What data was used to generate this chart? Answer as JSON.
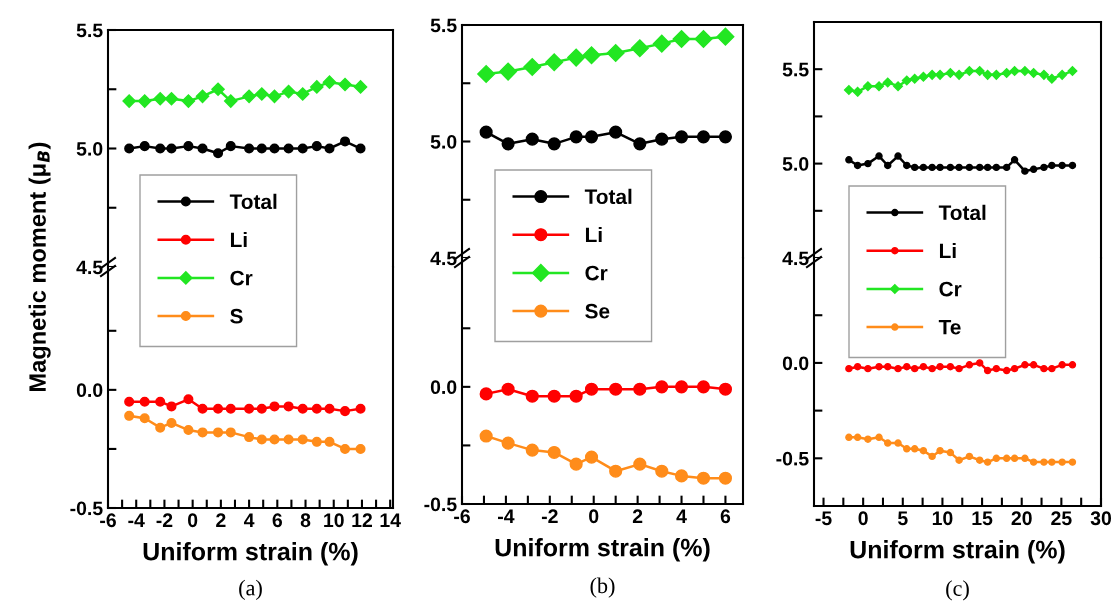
{
  "chart_data": [
    {
      "type": "line",
      "x": [
        -4.5,
        -3.4,
        -2.3,
        -1.5,
        -0.3,
        0.7,
        1.8,
        2.7,
        4.0,
        4.9,
        5.8,
        6.8,
        7.8,
        8.8,
        9.7,
        10.8,
        11.9
      ],
      "xlim": [
        -6,
        14.2
      ],
      "ylim": [
        4.5,
        5.5
      ],
      "yticks": [
        4.5,
        {
          "value": 4.75,
          "label": null
        },
        {
          "value": 5.0,
          "label": "5.0"
        },
        {
          "value": 5.25,
          "label": null
        },
        5.5
      ],
      "tick_labels": "y",
      "legend": "bottom left",
      "series": [
        {
          "name": "Total",
          "color": "#000000",
          "marker": "circle",
          "values": [
            5.0,
            5.01,
            5.0,
            5.0,
            5.01,
            5.0,
            4.98,
            5.01,
            5.0,
            5.0,
            5.0,
            5.0,
            5.0,
            5.01,
            5.0,
            5.03,
            5.0
          ]
        },
        {
          "name": "Cr",
          "color": "#22e622",
          "marker": "diamond",
          "values": [
            5.2,
            5.2,
            5.21,
            5.21,
            5.2,
            5.22,
            5.25,
            5.2,
            5.22,
            5.23,
            5.22,
            5.24,
            5.23,
            5.26,
            5.28,
            5.27,
            5.26
          ]
        }
      ]
    },
    {
      "type": "line",
      "x": [
        -4.5,
        -3.4,
        -2.3,
        -1.5,
        -0.3,
        0.7,
        1.8,
        2.7,
        4.0,
        4.9,
        5.8,
        6.8,
        7.8,
        8.8,
        9.7,
        10.8,
        11.9
      ],
      "xlim": [
        -6,
        14.2
      ],
      "ylim": [
        -0.5,
        0.52
      ],
      "yticks": [
        -0.5,
        {
          "value": -0.25,
          "label": null
        },
        {
          "value": 0,
          "label": "0.0"
        },
        {
          "value": 0.25,
          "label": null
        }
      ],
      "xticks": [
        -6,
        {
          "value": -5,
          "label": null
        },
        -4,
        {
          "value": -3,
          "label": null
        },
        -2,
        {
          "value": -1,
          "label": null
        },
        0,
        {
          "value": 1,
          "label": null
        },
        2,
        {
          "value": 3,
          "label": null
        },
        4,
        {
          "value": 5,
          "label": null
        },
        6,
        {
          "value": 7,
          "label": null
        },
        8,
        {
          "value": 9,
          "label": null
        },
        10,
        {
          "value": 11,
          "label": null
        },
        12,
        {
          "value": 13,
          "label": null
        },
        14
      ],
      "xlabel": "Uniform strain (%)",
      "ylabel": "Magnetic moment (μ$_{B}$)",
      "legend": "top left",
      "annotations": [
        "(a)"
      ],
      "series": [
        {
          "name": "Li",
          "color": "#ff0000",
          "marker": "circle",
          "values": [
            -0.05,
            -0.05,
            -0.05,
            -0.07,
            -0.04,
            -0.08,
            -0.08,
            -0.08,
            -0.08,
            -0.08,
            -0.07,
            -0.07,
            -0.08,
            -0.08,
            -0.08,
            -0.09,
            -0.08
          ]
        },
        {
          "name": "S",
          "color": "#ff8c1a",
          "marker": "circle",
          "values": [
            -0.11,
            -0.12,
            -0.16,
            -0.14,
            -0.17,
            -0.18,
            -0.18,
            -0.18,
            -0.2,
            -0.21,
            -0.21,
            -0.21,
            -0.21,
            -0.22,
            -0.22,
            -0.25,
            -0.25
          ]
        }
      ]
    },
    {
      "type": "line",
      "x": [
        -4.9,
        -3.9,
        -2.8,
        -1.8,
        -0.8,
        -0.1,
        1.0,
        2.1,
        3.1,
        4.0,
        5.0,
        6.0
      ],
      "xlim": [
        -6,
        6.8
      ],
      "ylim": [
        4.5,
        5.5
      ],
      "yticks": [
        4.5,
        {
          "value": 4.75,
          "label": null
        },
        {
          "value": 5.0,
          "label": "5.0"
        },
        {
          "value": 5.25,
          "label": null
        },
        5.5
      ],
      "tick_labels": "y",
      "legend": "bottom left",
      "series": [
        {
          "name": "Total",
          "color": "#000000",
          "marker": "circle",
          "values": [
            5.04,
            4.99,
            5.01,
            4.99,
            5.02,
            5.02,
            5.04,
            4.99,
            5.01,
            5.02,
            5.02,
            5.02
          ]
        },
        {
          "name": "Cr",
          "color": "#22e622",
          "marker": "diamond",
          "values": [
            5.29,
            5.3,
            5.32,
            5.34,
            5.36,
            5.37,
            5.38,
            5.4,
            5.42,
            5.44,
            5.44,
            5.45
          ]
        }
      ]
    },
    {
      "type": "line",
      "x": [
        -4.9,
        -3.9,
        -2.8,
        -1.8,
        -0.8,
        -0.1,
        1.0,
        2.1,
        3.1,
        4.0,
        5.0,
        6.0
      ],
      "xlim": [
        -6,
        6.8
      ],
      "ylim": [
        -0.5,
        0.55
      ],
      "yticks": [
        -0.5,
        {
          "value": -0.25,
          "label": null
        },
        {
          "value": 0,
          "label": "0.0"
        },
        {
          "value": 0.25,
          "label": null
        }
      ],
      "xticks": [
        -6,
        {
          "value": -5,
          "label": null
        },
        -4,
        {
          "value": -3,
          "label": null
        },
        -2,
        {
          "value": -1,
          "label": null
        },
        0,
        {
          "value": 1,
          "label": null
        },
        2,
        {
          "value": 3,
          "label": null
        },
        4,
        {
          "value": 5,
          "label": null
        },
        6
      ],
      "xlabel": "Uniform strain (%)",
      "legend": "top left",
      "annotations": [
        "(b)"
      ],
      "series": [
        {
          "name": "Li",
          "color": "#ff0000",
          "marker": "circle",
          "values": [
            -0.03,
            -0.01,
            -0.04,
            -0.04,
            -0.04,
            -0.01,
            -0.01,
            -0.01,
            0.0,
            0.0,
            0.0,
            -0.01
          ]
        },
        {
          "name": "Se",
          "color": "#ff8c1a",
          "marker": "circle",
          "values": [
            -0.21,
            -0.24,
            -0.27,
            -0.28,
            -0.33,
            -0.3,
            -0.36,
            -0.33,
            -0.36,
            -0.38,
            -0.39,
            -0.39
          ]
        }
      ]
    },
    {
      "type": "line",
      "x": [
        -1.8,
        -0.7,
        0.6,
        2.0,
        3.1,
        4.4,
        5.5,
        6.5,
        7.6,
        8.7,
        9.7,
        11.0,
        12.1,
        13.4,
        14.7,
        15.7,
        16.8,
        18.1,
        19.1,
        20.4,
        21.5,
        22.8,
        23.8,
        25.1,
        26.4
      ],
      "xlim": [
        -6.2,
        30
      ],
      "ylim": [
        4.5,
        5.75
      ],
      "yticks": [
        4.5,
        {
          "value": 4.75,
          "label": null
        },
        {
          "value": 5.0,
          "label": "5.0"
        },
        {
          "value": 5.25,
          "label": null
        },
        5.5
      ],
      "tick_labels": "y",
      "legend": "bottom left",
      "series": [
        {
          "name": "Total",
          "color": "#000000",
          "marker": "circle",
          "values": [
            5.02,
            4.99,
            5.0,
            5.04,
            4.99,
            5.04,
            4.99,
            4.98,
            4.98,
            4.98,
            4.98,
            4.98,
            4.98,
            4.98,
            4.98,
            4.98,
            4.98,
            4.98,
            5.02,
            4.96,
            4.97,
            4.98,
            4.99,
            4.99,
            4.99
          ]
        },
        {
          "name": "Cr",
          "color": "#22e622",
          "marker": "diamond",
          "values": [
            5.39,
            5.38,
            5.41,
            5.41,
            5.43,
            5.41,
            5.44,
            5.45,
            5.46,
            5.47,
            5.47,
            5.48,
            5.47,
            5.49,
            5.49,
            5.47,
            5.47,
            5.48,
            5.49,
            5.49,
            5.48,
            5.47,
            5.45,
            5.47,
            5.49
          ]
        }
      ]
    },
    {
      "type": "line",
      "x": [
        -1.8,
        -0.7,
        0.6,
        2.0,
        3.1,
        4.4,
        5.5,
        6.5,
        7.6,
        8.7,
        9.7,
        11.0,
        12.1,
        13.4,
        14.7,
        15.7,
        16.8,
        18.1,
        19.1,
        20.4,
        21.5,
        22.8,
        23.8,
        25.1,
        26.4
      ],
      "xlim": [
        -6.2,
        30
      ],
      "ylim": [
        -0.75,
        0.55
      ],
      "yticks": [
        -0.5,
        {
          "value": -0.25,
          "label": null
        },
        {
          "value": 0,
          "label": "0.0"
        },
        {
          "value": 0.25,
          "label": null
        }
      ],
      "xticks": [
        -5,
        {
          "value": -2.5,
          "label": null
        },
        0,
        {
          "value": 2.5,
          "label": null
        },
        5,
        {
          "value": 7.5,
          "label": null
        },
        10,
        {
          "value": 12.5,
          "label": null
        },
        15,
        {
          "value": 17.5,
          "label": null
        },
        20,
        {
          "value": 22.5,
          "label": null
        },
        25,
        {
          "value": 27.5,
          "label": null
        },
        30
      ],
      "xlabel": "Uniform strain (%)",
      "legend": "top left",
      "annotations": [
        "(c)"
      ],
      "series": [
        {
          "name": "Li",
          "color": "#ff0000",
          "marker": "circle",
          "values": [
            -0.03,
            -0.02,
            -0.03,
            -0.02,
            -0.02,
            -0.03,
            -0.02,
            -0.03,
            -0.02,
            -0.03,
            -0.02,
            -0.02,
            -0.03,
            -0.01,
            0.0,
            -0.04,
            -0.03,
            -0.04,
            -0.03,
            -0.01,
            -0.01,
            -0.03,
            -0.03,
            -0.01,
            -0.01
          ]
        },
        {
          "name": "Te",
          "color": "#ff8c1a",
          "marker": "circle",
          "values": [
            -0.39,
            -0.39,
            -0.4,
            -0.39,
            -0.42,
            -0.42,
            -0.45,
            -0.45,
            -0.46,
            -0.49,
            -0.46,
            -0.47,
            -0.51,
            -0.49,
            -0.51,
            -0.52,
            -0.5,
            -0.5,
            -0.5,
            -0.5,
            -0.52,
            -0.52,
            -0.52,
            -0.52,
            -0.52
          ]
        }
      ]
    }
  ]
}
